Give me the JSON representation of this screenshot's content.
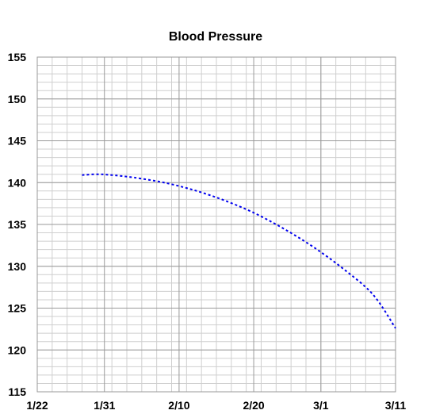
{
  "chart_data": {
    "type": "line",
    "title": "Blood Pressure",
    "xlabel": "",
    "ylabel": "",
    "x_axis": {
      "min": "1/22",
      "max": "3/11",
      "tick_labels": [
        "1/22",
        "1/31",
        "2/10",
        "2/20",
        "3/1",
        "3/11"
      ],
      "minor_grid_step_days": 2
    },
    "y_axis": {
      "min": 115,
      "max": 155,
      "tick_labels": [
        "115",
        "120",
        "125",
        "130",
        "135",
        "140",
        "145",
        "150",
        "155"
      ],
      "minor_grid_step": 1
    },
    "grid": true,
    "series": [
      {
        "name": "",
        "color": "#0000ee",
        "line_style": "dashed",
        "x": [
          "1/28",
          "1/30",
          "2/1",
          "2/4",
          "2/8",
          "2/12",
          "2/16",
          "2/20",
          "2/24",
          "2/28",
          "3/4",
          "3/8",
          "3/11"
        ],
        "y": [
          140.9,
          141.0,
          140.9,
          140.6,
          140.0,
          139.1,
          137.9,
          136.4,
          134.5,
          132.3,
          129.7,
          126.6,
          122.6
        ]
      }
    ]
  }
}
